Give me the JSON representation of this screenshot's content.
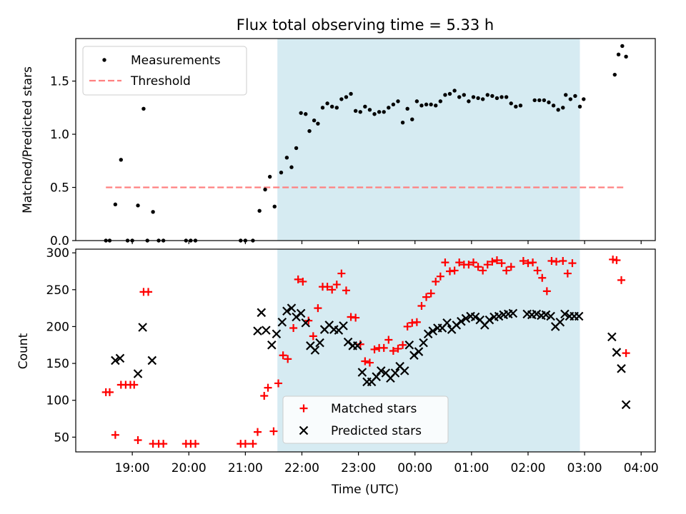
{
  "chart_data": [
    {
      "type": "scatter",
      "title": "Flux total observing time = 5.33 h",
      "xlabel": "",
      "ylabel": "Matched/Predicted stars",
      "ylim": [
        0,
        1.9
      ],
      "yticks": [
        "0.0",
        "0.5",
        "1.0",
        "1.5"
      ],
      "xlim": [
        "18:00",
        "04:15"
      ],
      "legend": {
        "position": "top-left",
        "entries": [
          "Measurements",
          "Threshold"
        ]
      },
      "shaded_interval": {
        "start": "21:34",
        "end": "02:55",
        "color": "#add8e6"
      },
      "threshold": {
        "value": 0.5,
        "start": "18:32",
        "end": "03:42",
        "color": "#ff8080"
      },
      "series": [
        {
          "name": "Measurements",
          "color": "#000000",
          "points": [
            [
              "18:32",
              0.0
            ],
            [
              "18:36",
              0.0
            ],
            [
              "18:42",
              0.34
            ],
            [
              "18:48",
              0.76
            ],
            [
              "18:55",
              0.0
            ],
            [
              "19:00",
              0.0
            ],
            [
              "19:06",
              0.33
            ],
            [
              "19:12",
              1.24
            ],
            [
              "19:16",
              0.0
            ],
            [
              "19:22",
              0.27
            ],
            [
              "19:28",
              0.0
            ],
            [
              "19:33",
              0.0
            ],
            [
              "19:57",
              0.0
            ],
            [
              "20:02",
              0.0
            ],
            [
              "20:07",
              0.0
            ],
            [
              "20:55",
              0.0
            ],
            [
              "21:00",
              0.0
            ],
            [
              "21:08",
              0.0
            ],
            [
              "21:15",
              0.28
            ],
            [
              "21:21",
              0.48
            ],
            [
              "21:26",
              0.6
            ],
            [
              "21:31",
              0.32
            ],
            [
              "21:38",
              0.64
            ],
            [
              "21:44",
              0.78
            ],
            [
              "21:49",
              0.69
            ],
            [
              "21:54",
              0.87
            ],
            [
              "21:59",
              1.2
            ],
            [
              "22:04",
              1.19
            ],
            [
              "22:08",
              1.03
            ],
            [
              "22:13",
              1.13
            ],
            [
              "22:17",
              1.1
            ],
            [
              "22:22",
              1.25
            ],
            [
              "22:27",
              1.29
            ],
            [
              "22:32",
              1.26
            ],
            [
              "22:37",
              1.25
            ],
            [
              "22:42",
              1.33
            ],
            [
              "22:47",
              1.35
            ],
            [
              "22:52",
              1.38
            ],
            [
              "22:57",
              1.22
            ],
            [
              "23:02",
              1.21
            ],
            [
              "23:07",
              1.26
            ],
            [
              "23:12",
              1.23
            ],
            [
              "23:17",
              1.19
            ],
            [
              "23:22",
              1.21
            ],
            [
              "23:27",
              1.21
            ],
            [
              "23:32",
              1.25
            ],
            [
              "23:37",
              1.28
            ],
            [
              "23:42",
              1.31
            ],
            [
              "23:47",
              1.11
            ],
            [
              "23:52",
              1.24
            ],
            [
              "23:57",
              1.14
            ],
            [
              "00:02",
              1.31
            ],
            [
              "00:07",
              1.27
            ],
            [
              "00:12",
              1.28
            ],
            [
              "00:17",
              1.28
            ],
            [
              "00:22",
              1.27
            ],
            [
              "00:27",
              1.31
            ],
            [
              "00:32",
              1.37
            ],
            [
              "00:37",
              1.38
            ],
            [
              "00:42",
              1.41
            ],
            [
              "00:47",
              1.35
            ],
            [
              "00:52",
              1.37
            ],
            [
              "00:57",
              1.31
            ],
            [
              "01:02",
              1.35
            ],
            [
              "01:07",
              1.34
            ],
            [
              "01:12",
              1.33
            ],
            [
              "01:17",
              1.37
            ],
            [
              "01:22",
              1.36
            ],
            [
              "01:27",
              1.34
            ],
            [
              "01:32",
              1.35
            ],
            [
              "01:37",
              1.35
            ],
            [
              "01:42",
              1.29
            ],
            [
              "01:47",
              1.26
            ],
            [
              "01:52",
              1.27
            ],
            [
              "02:07",
              1.32
            ],
            [
              "02:12",
              1.32
            ],
            [
              "02:17",
              1.32
            ],
            [
              "02:22",
              1.3
            ],
            [
              "02:27",
              1.27
            ],
            [
              "02:32",
              1.23
            ],
            [
              "02:37",
              1.25
            ],
            [
              "02:40",
              1.37
            ],
            [
              "02:45",
              1.33
            ],
            [
              "02:50",
              1.36
            ],
            [
              "02:55",
              1.26
            ],
            [
              "02:59",
              1.33
            ],
            [
              "03:32",
              1.56
            ],
            [
              "03:36",
              1.75
            ],
            [
              "03:40",
              1.83
            ],
            [
              "03:44",
              1.73
            ]
          ]
        }
      ]
    },
    {
      "type": "scatter",
      "title": "",
      "xlabel": "Time (UTC)",
      "ylabel": "Count",
      "ylim": [
        30,
        305
      ],
      "yticks": [
        "50",
        "100",
        "150",
        "200",
        "250",
        "300"
      ],
      "xticks": [
        "19:00",
        "20:00",
        "21:00",
        "22:00",
        "23:00",
        "00:00",
        "01:00",
        "02:00",
        "03:00",
        "04:00"
      ],
      "xlim": [
        "18:00",
        "04:15"
      ],
      "legend": {
        "position": "bottom-center",
        "entries": [
          "Matched stars",
          "Predicted stars"
        ]
      },
      "shaded_interval": {
        "start": "21:34",
        "end": "02:55",
        "color": "#add8e6"
      },
      "series": [
        {
          "name": "Matched stars",
          "color": "#ff0000",
          "marker": "+",
          "points": [
            [
              "18:32",
              111
            ],
            [
              "18:36",
              111
            ],
            [
              "18:42",
              53
            ],
            [
              "18:48",
              121
            ],
            [
              "18:53",
              121
            ],
            [
              "18:58",
              121
            ],
            [
              "19:02",
              121
            ],
            [
              "19:06",
              46
            ],
            [
              "19:12",
              247
            ],
            [
              "19:17",
              247
            ],
            [
              "19:22",
              41
            ],
            [
              "19:28",
              41
            ],
            [
              "19:33",
              41
            ],
            [
              "19:57",
              41
            ],
            [
              "20:02",
              41
            ],
            [
              "20:07",
              41
            ],
            [
              "20:55",
              41
            ],
            [
              "21:00",
              41
            ],
            [
              "21:08",
              41
            ],
            [
              "21:13",
              57
            ],
            [
              "21:20",
              106
            ],
            [
              "21:24",
              117
            ],
            [
              "21:30",
              58
            ],
            [
              "21:35",
              123
            ],
            [
              "21:40",
              161
            ],
            [
              "21:45",
              156
            ],
            [
              "21:51",
              198
            ],
            [
              "21:56",
              264
            ],
            [
              "22:01",
              261
            ],
            [
              "22:07",
              208
            ],
            [
              "22:12",
              187
            ],
            [
              "22:17",
              225
            ],
            [
              "22:22",
              254
            ],
            [
              "22:27",
              254
            ],
            [
              "22:32",
              250
            ],
            [
              "22:37",
              257
            ],
            [
              "22:42",
              272
            ],
            [
              "22:47",
              249
            ],
            [
              "22:52",
              213
            ],
            [
              "22:57",
              212
            ],
            [
              "23:02",
              176
            ],
            [
              "23:07",
              153
            ],
            [
              "23:12",
              151
            ],
            [
              "23:17",
              169
            ],
            [
              "23:22",
              171
            ],
            [
              "23:27",
              171
            ],
            [
              "23:32",
              182
            ],
            [
              "23:37",
              167
            ],
            [
              "23:42",
              170
            ],
            [
              "23:47",
              175
            ],
            [
              "23:52",
              200
            ],
            [
              "23:57",
              205
            ],
            [
              "00:02",
              206
            ],
            [
              "00:07",
              228
            ],
            [
              "00:12",
              240
            ],
            [
              "00:17",
              245
            ],
            [
              "00:22",
              261
            ],
            [
              "00:27",
              268
            ],
            [
              "00:32",
              287
            ],
            [
              "00:37",
              275
            ],
            [
              "00:42",
              276
            ],
            [
              "00:47",
              287
            ],
            [
              "00:52",
              284
            ],
            [
              "00:57",
              284
            ],
            [
              "01:02",
              287
            ],
            [
              "01:07",
              281
            ],
            [
              "01:12",
              276
            ],
            [
              "01:17",
              284
            ],
            [
              "01:22",
              288
            ],
            [
              "01:27",
              290
            ],
            [
              "01:32",
              286
            ],
            [
              "01:37",
              276
            ],
            [
              "01:42",
              281
            ],
            [
              "01:55",
              289
            ],
            [
              "02:00",
              286
            ],
            [
              "02:05",
              287
            ],
            [
              "02:10",
              276
            ],
            [
              "02:15",
              266
            ],
            [
              "02:20",
              248
            ],
            [
              "02:25",
              289
            ],
            [
              "02:30",
              288
            ],
            [
              "02:37",
              289
            ],
            [
              "02:42",
              272
            ],
            [
              "02:47",
              286
            ],
            [
              "03:30",
              291
            ],
            [
              "03:34",
              290
            ],
            [
              "03:39",
              263
            ],
            [
              "03:44",
              164
            ]
          ]
        },
        {
          "name": "Predicted stars",
          "color": "#000000",
          "marker": "x",
          "points": [
            [
              "18:42",
              154
            ],
            [
              "18:47",
              157
            ],
            [
              "19:06",
              136
            ],
            [
              "19:11",
              199
            ],
            [
              "19:21",
              154
            ],
            [
              "21:13",
              194
            ],
            [
              "21:17",
              219
            ],
            [
              "21:22",
              195
            ],
            [
              "21:28",
              175
            ],
            [
              "21:33",
              190
            ],
            [
              "21:39",
              206
            ],
            [
              "21:44",
              221
            ],
            [
              "21:49",
              225
            ],
            [
              "21:54",
              213
            ],
            [
              "21:59",
              218
            ],
            [
              "22:04",
              205
            ],
            [
              "22:09",
              174
            ],
            [
              "22:14",
              168
            ],
            [
              "22:19",
              178
            ],
            [
              "22:24",
              196
            ],
            [
              "22:29",
              202
            ],
            [
              "22:34",
              196
            ],
            [
              "22:39",
              195
            ],
            [
              "22:44",
              201
            ],
            [
              "22:49",
              179
            ],
            [
              "22:54",
              174
            ],
            [
              "22:59",
              174
            ],
            [
              "23:04",
              138
            ],
            [
              "23:09",
              125
            ],
            [
              "23:14",
              125
            ],
            [
              "23:19",
              132
            ],
            [
              "23:24",
              140
            ],
            [
              "23:29",
              137
            ],
            [
              "23:34",
              130
            ],
            [
              "23:39",
              137
            ],
            [
              "23:44",
              146
            ],
            [
              "23:49",
              140
            ],
            [
              "23:54",
              175
            ],
            [
              "23:59",
              161
            ],
            [
              "00:04",
              166
            ],
            [
              "00:09",
              178
            ],
            [
              "00:14",
              190
            ],
            [
              "00:19",
              194
            ],
            [
              "00:24",
              198
            ],
            [
              "00:29",
              198
            ],
            [
              "00:34",
              205
            ],
            [
              "00:39",
              196
            ],
            [
              "00:44",
              202
            ],
            [
              "00:49",
              207
            ],
            [
              "00:54",
              211
            ],
            [
              "00:59",
              214
            ],
            [
              "01:04",
              213
            ],
            [
              "01:09",
              209
            ],
            [
              "01:14",
              202
            ],
            [
              "01:19",
              209
            ],
            [
              "01:24",
              213
            ],
            [
              "01:29",
              214
            ],
            [
              "01:34",
              216
            ],
            [
              "01:39",
              217
            ],
            [
              "01:44",
              218
            ],
            [
              "01:59",
              217
            ],
            [
              "02:04",
              216
            ],
            [
              "02:09",
              217
            ],
            [
              "02:14",
              215
            ],
            [
              "02:19",
              216
            ],
            [
              "02:24",
              214
            ],
            [
              "02:29",
              200
            ],
            [
              "02:34",
              206
            ],
            [
              "02:39",
              217
            ],
            [
              "02:44",
              214
            ],
            [
              "02:49",
              214
            ],
            [
              "02:54",
              214
            ],
            [
              "03:29",
              186
            ],
            [
              "03:34",
              165
            ],
            [
              "03:39",
              143
            ],
            [
              "03:44",
              94
            ]
          ]
        }
      ]
    }
  ]
}
